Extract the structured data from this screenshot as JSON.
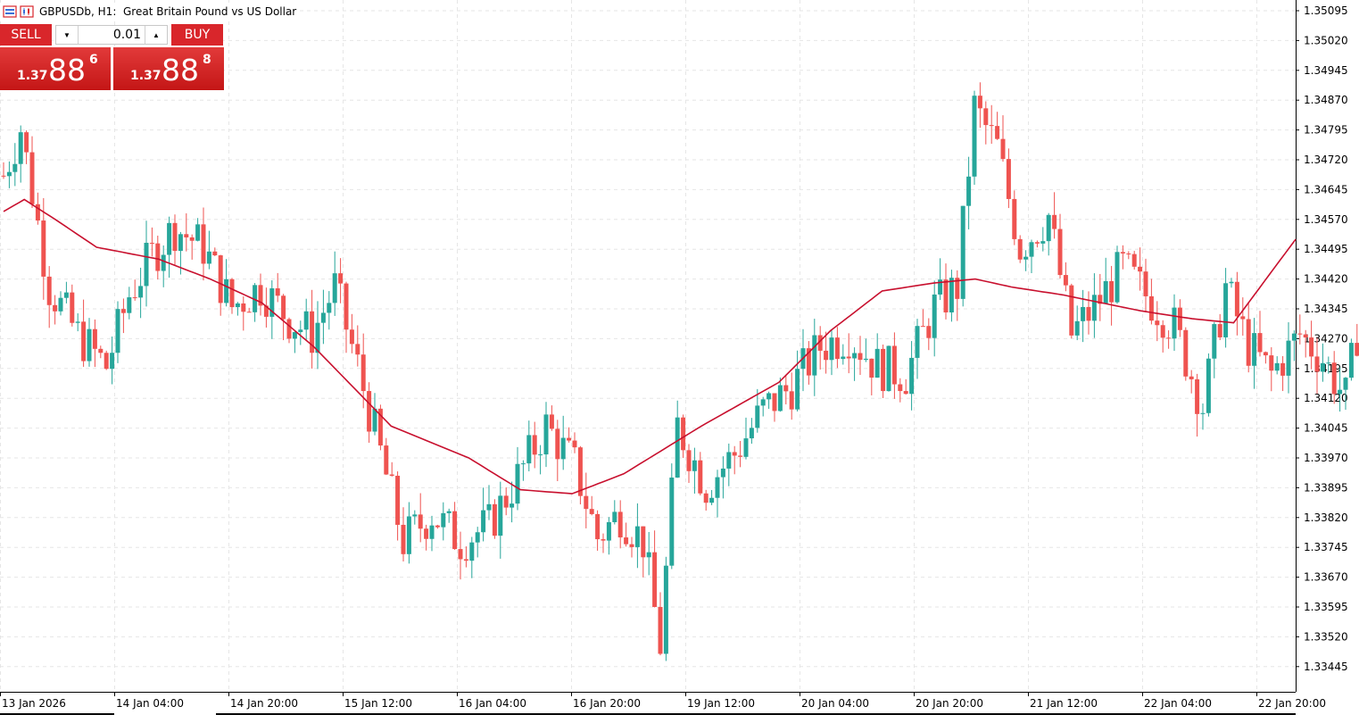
{
  "header": {
    "title": "GBPUSDb, H1:  Great Britain Pound vs US Dollar",
    "icons": [
      "trade-panel-toggle-icon",
      "chart-type-icon"
    ]
  },
  "trade_panel": {
    "sell_label": "SELL",
    "buy_label": "BUY",
    "lot_value": "0.01",
    "sell_price": {
      "small": "1.37",
      "big": "88",
      "sup": "6"
    },
    "buy_price": {
      "small": "1.37",
      "big": "88",
      "sup": "8"
    }
  },
  "colors": {
    "bull": "#26a69a",
    "bear": "#ef5350",
    "ma_line": "#c8102e",
    "grid": "#e6e6e6",
    "panel_red": "#d9262b"
  },
  "chart_data": {
    "type": "candlestick",
    "symbol": "GBPUSDb",
    "timeframe": "H1",
    "price_axis_ticks": [
      "1.35095",
      "1.35020",
      "1.34945",
      "1.34870",
      "1.34795",
      "1.34720",
      "1.34645",
      "1.34570",
      "1.34495",
      "1.34420",
      "1.34345",
      "1.34270",
      "1.34195",
      "1.34120",
      "1.34045",
      "1.33970",
      "1.33895",
      "1.33820",
      "1.33745",
      "1.33670",
      "1.33595",
      "1.33520",
      "1.33445"
    ],
    "ylim": [
      1.334,
      1.3511
    ],
    "time_axis_labels": [
      "13 Jan 2026",
      "14 Jan 04:00",
      "14 Jan 20:00",
      "15 Jan 12:00",
      "16 Jan 04:00",
      "16 Jan 20:00",
      "19 Jan 12:00",
      "20 Jan 04:00",
      "20 Jan 20:00",
      "21 Jan 12:00",
      "22 Jan 04:00",
      "22 Jan 20:00"
    ],
    "grid": true,
    "moving_average_anchors": [
      [
        0,
        1.3459
      ],
      [
        4,
        1.3462
      ],
      [
        10,
        1.3457
      ],
      [
        18,
        1.345
      ],
      [
        30,
        1.3447
      ],
      [
        40,
        1.3442
      ],
      [
        50,
        1.3436
      ],
      [
        60,
        1.3425
      ],
      [
        75,
        1.3405
      ],
      [
        90,
        1.3397
      ],
      [
        100,
        1.3389
      ],
      [
        110,
        1.3388
      ],
      [
        120,
        1.3393
      ],
      [
        135,
        1.3405
      ],
      [
        150,
        1.3416
      ],
      [
        160,
        1.3429
      ],
      [
        170,
        1.3439
      ],
      [
        180,
        1.3441
      ],
      [
        188,
        1.3442
      ],
      [
        195,
        1.344
      ],
      [
        205,
        1.3438
      ],
      [
        220,
        1.3434
      ],
      [
        230,
        1.3432
      ],
      [
        238,
        1.3431
      ],
      [
        250,
        1.3452
      ]
    ],
    "trend_anchors": [
      [
        0,
        1.3468
      ],
      [
        3,
        1.348
      ],
      [
        8,
        1.344
      ],
      [
        13,
        1.3428
      ],
      [
        18,
        1.342
      ],
      [
        22,
        1.3438
      ],
      [
        26,
        1.3448
      ],
      [
        30,
        1.3455
      ],
      [
        35,
        1.345
      ],
      [
        40,
        1.3435
      ],
      [
        45,
        1.344
      ],
      [
        50,
        1.3432
      ],
      [
        54,
        1.3428
      ],
      [
        58,
        1.344
      ],
      [
        62,
        1.342
      ],
      [
        66,
        1.3398
      ],
      [
        70,
        1.3376
      ],
      [
        75,
        1.3383
      ],
      [
        80,
        1.3376
      ],
      [
        85,
        1.338
      ],
      [
        90,
        1.3392
      ],
      [
        95,
        1.3405
      ],
      [
        100,
        1.3395
      ],
      [
        104,
        1.3377
      ],
      [
        108,
        1.3383
      ],
      [
        112,
        1.3376
      ],
      [
        115,
        1.335
      ],
      [
        118,
        1.3405
      ],
      [
        123,
        1.339
      ],
      [
        128,
        1.3398
      ],
      [
        133,
        1.3409
      ],
      [
        138,
        1.3415
      ],
      [
        143,
        1.3425
      ],
      [
        148,
        1.3428
      ],
      [
        153,
        1.342
      ],
      [
        158,
        1.3418
      ],
      [
        163,
        1.3435
      ],
      [
        167,
        1.344
      ],
      [
        170,
        1.3485
      ],
      [
        174,
        1.3475
      ],
      [
        178,
        1.345
      ],
      [
        183,
        1.3458
      ],
      [
        187,
        1.3428
      ],
      [
        191,
        1.3435
      ],
      [
        196,
        1.3445
      ],
      [
        200,
        1.3438
      ],
      [
        205,
        1.343
      ],
      [
        210,
        1.341
      ],
      [
        214,
        1.344
      ],
      [
        218,
        1.3425
      ],
      [
        222,
        1.3418
      ],
      [
        227,
        1.3428
      ],
      [
        231,
        1.3422
      ],
      [
        235,
        1.3412
      ],
      [
        239,
        1.3445
      ],
      [
        243,
        1.342
      ],
      [
        246,
        1.348
      ],
      [
        250,
        1.3498
      ],
      [
        253,
        1.3496
      ]
    ]
  }
}
